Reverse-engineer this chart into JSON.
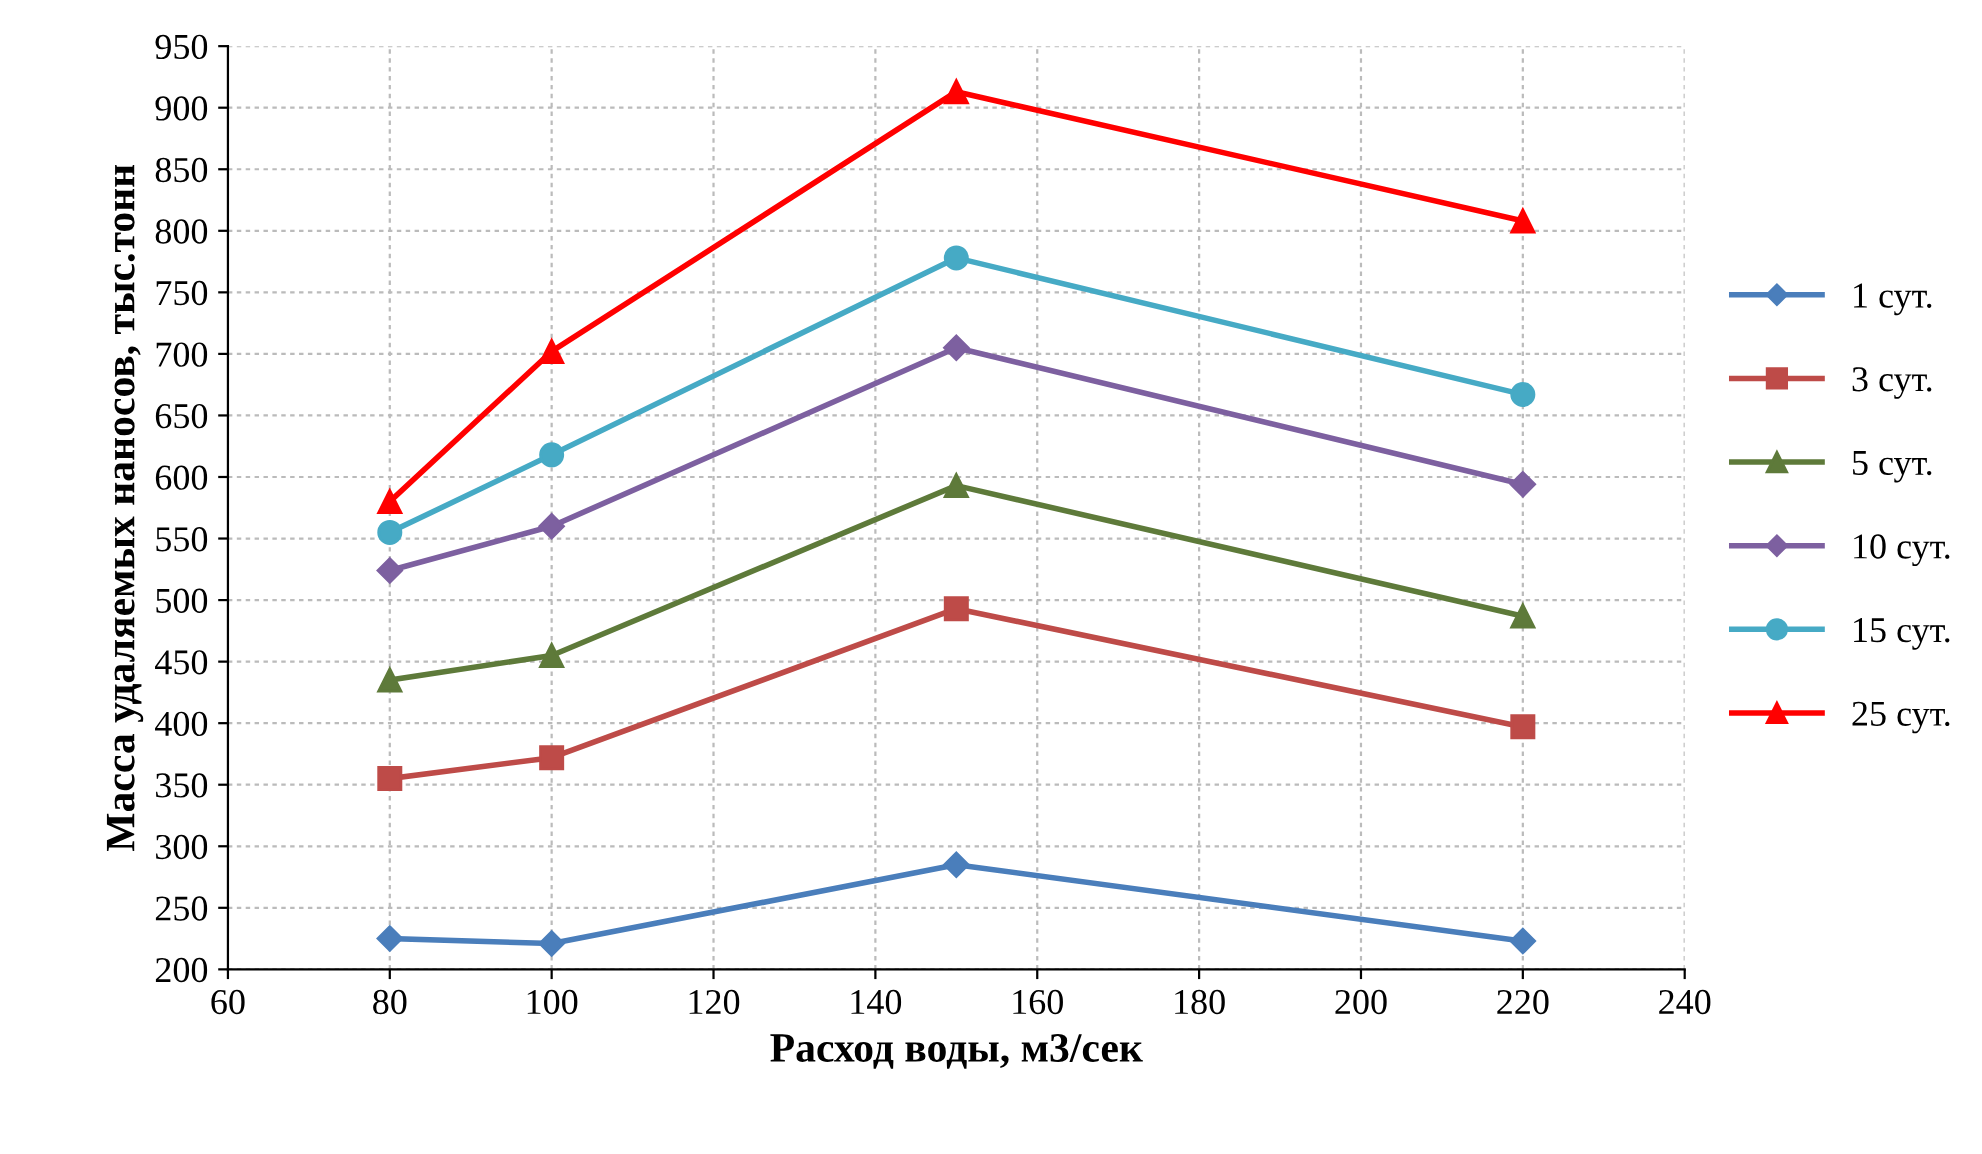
{
  "chart_data": {
    "type": "line",
    "xlabel": "Расход воды, м3/сек",
    "ylabel": "Масса удаляемых наносов, тыс.тонн",
    "x": [
      80,
      100,
      150,
      220
    ],
    "xlim": [
      60,
      240
    ],
    "xticks": [
      60,
      80,
      100,
      120,
      140,
      160,
      180,
      200,
      220,
      240
    ],
    "ylim": [
      200,
      950
    ],
    "yticks": [
      200,
      250,
      300,
      350,
      400,
      450,
      500,
      550,
      600,
      650,
      700,
      750,
      800,
      850,
      900,
      950
    ],
    "grid": true,
    "legend": "right",
    "line_style": "solid",
    "series": [
      {
        "name": "1 сут.",
        "color": "#4a7ebb",
        "marker": "diamond",
        "values": [
          225,
          221,
          285,
          223
        ]
      },
      {
        "name": "3 сут.",
        "color": "#be4b48",
        "marker": "square",
        "values": [
          355,
          372,
          493,
          397
        ]
      },
      {
        "name": "5 сут.",
        "color": "#5e7a3a",
        "marker": "triangle",
        "values": [
          435,
          455,
          593,
          487
        ]
      },
      {
        "name": "10 сут.",
        "color": "#7d60a0",
        "marker": "diamond",
        "values": [
          524,
          560,
          705,
          594
        ]
      },
      {
        "name": "15 сут.",
        "color": "#46aac5",
        "marker": "circle",
        "values": [
          555,
          618,
          778,
          667
        ]
      },
      {
        "name": "25 сут.",
        "color": "#ff0000",
        "marker": "triangle",
        "values": [
          580,
          702,
          913,
          808
        ]
      }
    ]
  }
}
